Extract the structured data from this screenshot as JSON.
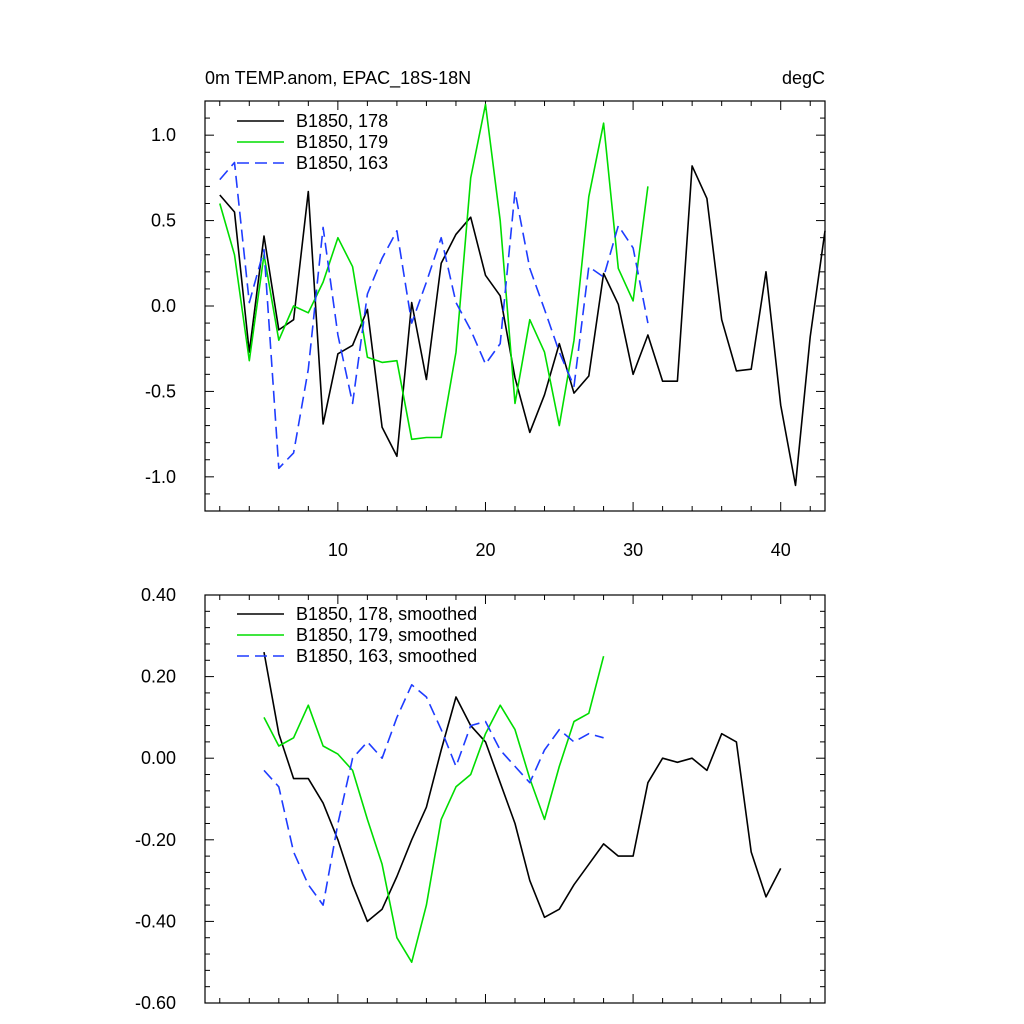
{
  "chart_data": [
    {
      "type": "line",
      "title": "0m TEMP.anom, EPAC_18S-18N",
      "units": "degC",
      "xlim": [
        1,
        43
      ],
      "ylim": [
        -1.2,
        1.2
      ],
      "xticks": [
        10,
        20,
        30,
        40
      ],
      "xticklabels": [
        "10",
        "20",
        "30",
        "40"
      ],
      "yticks": [
        1.0,
        0.5,
        0.0,
        -0.5,
        -1.0
      ],
      "yticklabels": [
        "1.0",
        "0.5",
        "0.0",
        "-0.5",
        "-1.0"
      ],
      "legend_position": "top-left",
      "series": [
        {
          "name": "B1850, 178",
          "color": "#000000",
          "dash": "solid",
          "x_start": 2,
          "values": [
            0.65,
            0.55,
            -0.27,
            0.41,
            -0.14,
            -0.08,
            0.67,
            -0.69,
            -0.28,
            -0.23,
            -0.02,
            -0.71,
            -0.88,
            0.02,
            -0.43,
            0.25,
            0.42,
            0.52,
            0.18,
            0.06,
            -0.42,
            -0.74,
            -0.52,
            -0.22,
            -0.51,
            -0.41,
            0.19,
            0.01,
            -0.4,
            -0.17,
            -0.44,
            -0.44,
            0.82,
            0.63,
            -0.08,
            -0.38,
            -0.37,
            0.2,
            -0.58,
            -1.05,
            -0.18,
            0.44
          ]
        },
        {
          "name": "B1850, 179",
          "color": "#00dd00",
          "dash": "solid",
          "x_start": 2,
          "values": [
            0.6,
            0.3,
            -0.32,
            0.3,
            -0.2,
            0.0,
            -0.04,
            0.14,
            0.4,
            0.23,
            -0.3,
            -0.33,
            -0.32,
            -0.78,
            -0.77,
            -0.77,
            -0.27,
            0.75,
            1.18,
            0.5,
            -0.57,
            -0.08,
            -0.27,
            -0.7,
            -0.2,
            0.64,
            1.07,
            0.22,
            0.03,
            0.7
          ]
        },
        {
          "name": "B1850, 163",
          "color": "#1e3cff",
          "dash": "dashed",
          "x_start": 2,
          "values": [
            0.74,
            0.84,
            0.02,
            0.33,
            -0.95,
            -0.86,
            -0.37,
            0.46,
            -0.17,
            -0.57,
            0.07,
            0.28,
            0.44,
            -0.1,
            0.14,
            0.4,
            0.02,
            -0.14,
            -0.34,
            -0.22,
            0.67,
            0.22,
            -0.02,
            -0.27,
            -0.47,
            0.23,
            0.17,
            0.47,
            0.34,
            -0.1
          ]
        }
      ]
    },
    {
      "type": "line",
      "title": "",
      "xlim": [
        1,
        43
      ],
      "ylim": [
        -0.6,
        0.4
      ],
      "xticks": [
        10,
        20,
        30,
        40
      ],
      "xticklabels": [],
      "yticks": [
        0.4,
        0.2,
        0.0,
        -0.2,
        -0.4,
        -0.6
      ],
      "yticklabels": [
        "0.40",
        "0.20",
        "0.00",
        "-0.20",
        "-0.40",
        "-0.60"
      ],
      "legend_position": "top-left",
      "series": [
        {
          "name": "B1850, 178, smoothed",
          "color": "#000000",
          "dash": "solid",
          "x_start": 5,
          "values": [
            0.26,
            0.06,
            -0.05,
            -0.05,
            -0.11,
            -0.2,
            -0.31,
            -0.4,
            -0.37,
            -0.29,
            -0.2,
            -0.12,
            0.02,
            0.15,
            0.08,
            0.04,
            -0.06,
            -0.16,
            -0.3,
            -0.39,
            -0.37,
            -0.31,
            -0.26,
            -0.21,
            -0.24,
            -0.24,
            -0.06,
            0.0,
            -0.01,
            0.0,
            -0.03,
            0.06,
            0.04,
            -0.23,
            -0.34,
            -0.27
          ]
        },
        {
          "name": "B1850, 179, smoothed",
          "color": "#00dd00",
          "dash": "solid",
          "x_start": 5,
          "values": [
            0.1,
            0.03,
            0.05,
            0.13,
            0.03,
            0.01,
            -0.03,
            -0.15,
            -0.26,
            -0.44,
            -0.5,
            -0.36,
            -0.15,
            -0.07,
            -0.04,
            0.06,
            0.13,
            0.07,
            -0.05,
            -0.15,
            -0.02,
            0.09,
            0.11,
            0.25
          ]
        },
        {
          "name": "B1850, 163, smoothed",
          "color": "#1e3cff",
          "dash": "dashed",
          "x_start": 5,
          "values": [
            -0.03,
            -0.07,
            -0.23,
            -0.31,
            -0.36,
            -0.16,
            0.0,
            0.04,
            0.0,
            0.1,
            0.18,
            0.15,
            0.07,
            -0.02,
            0.08,
            0.09,
            0.02,
            -0.02,
            -0.06,
            0.02,
            0.07,
            0.04,
            0.06,
            0.05
          ]
        }
      ]
    }
  ]
}
